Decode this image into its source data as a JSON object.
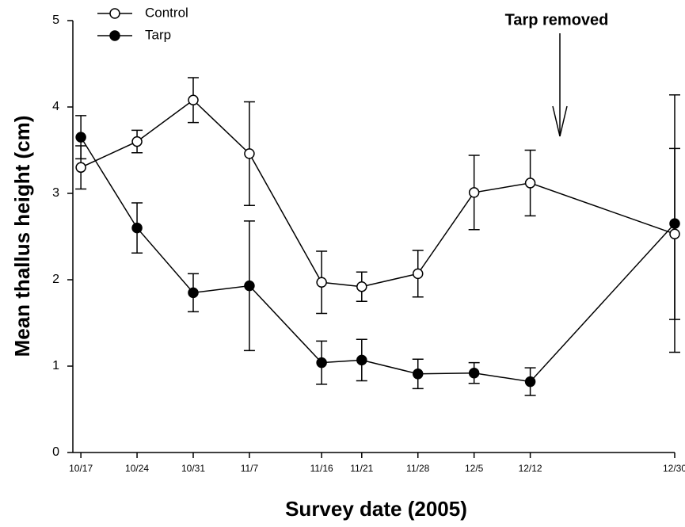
{
  "chart_data": {
    "type": "line",
    "x_label": "Survey date (2005)",
    "y_label": "Mean thallus height (cm)",
    "annotation": "Tarp removed",
    "x": [
      "2005-10-17",
      "2005-10-24",
      "2005-10-31",
      "2005-11-07",
      "2005-11-16",
      "2005-11-21",
      "2005-11-28",
      "2005-12-05",
      "2005-12-12",
      "2005-12-30"
    ],
    "series": [
      {
        "name": "Control",
        "color": "#000000",
        "marker_fill": "#ffffff",
        "values": [
          3.3,
          3.6,
          4.08,
          3.46,
          1.97,
          1.92,
          2.07,
          3.01,
          3.12,
          2.53
        ],
        "errors": [
          0.25,
          0.13,
          0.26,
          0.6,
          0.36,
          0.17,
          0.27,
          0.43,
          0.38,
          0.99
        ]
      },
      {
        "name": "Tarp",
        "color": "#000000",
        "marker_fill": "#000000",
        "values": [
          3.65,
          2.6,
          1.85,
          1.93,
          1.04,
          1.07,
          0.91,
          0.92,
          0.82,
          2.65
        ],
        "errors": [
          0.25,
          0.29,
          0.22,
          0.75,
          0.25,
          0.24,
          0.17,
          0.12,
          0.16,
          1.49
        ]
      }
    ],
    "xlim": [
      "2005-10-16",
      "2005-12-30"
    ],
    "xticks": [
      {
        "value": "2005-10-17",
        "label": "10/17"
      },
      {
        "value": "2005-10-24",
        "label": "10/24"
      },
      {
        "value": "2005-10-31",
        "label": "10/31"
      },
      {
        "value": "2005-11-07",
        "label": "11/7"
      },
      {
        "value": "2005-11-16",
        "label": "11/16"
      },
      {
        "value": "2005-11-21",
        "label": "11/21"
      },
      {
        "value": "2005-11-28",
        "label": "11/28"
      },
      {
        "value": "2005-12-05",
        "label": "12/5"
      },
      {
        "value": "2005-12-12",
        "label": "12/12"
      },
      {
        "value": "2005-12-30",
        "label": "12/30"
      }
    ],
    "ylim": [
      0,
      5
    ],
    "yticks": [
      0,
      1,
      2,
      3,
      4,
      5
    ],
    "grid": false,
    "legend": "top-left"
  }
}
